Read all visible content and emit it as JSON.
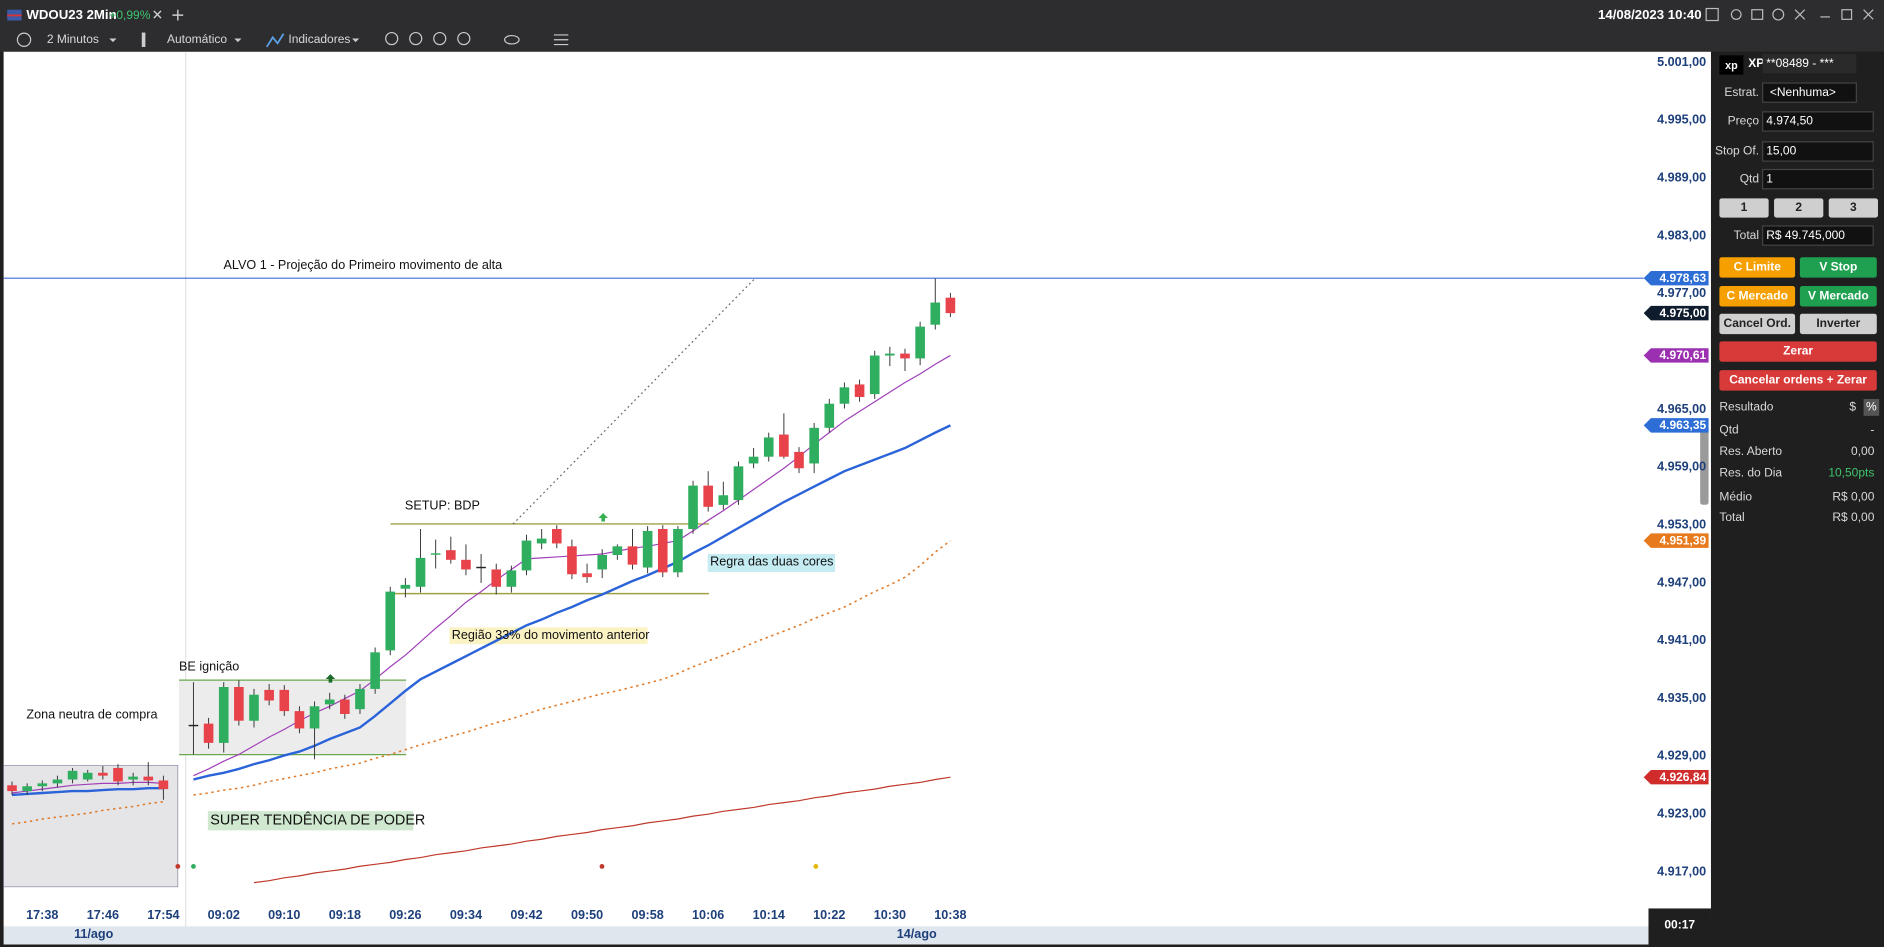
{
  "window": {
    "ticker": "WDOU23 2Min",
    "change": "+0,99%",
    "datetime": "14/08/2023 10:40"
  },
  "toolbar": {
    "interval": "2 Minutos",
    "scale": "Automático",
    "indicators": "Indicadores"
  },
  "chart_data": {
    "type": "candlestick",
    "ylim": [
      4915.75,
      5002.1
    ],
    "yticks": [
      {
        "value": 5001,
        "label": "5.001,00"
      },
      {
        "value": 4995,
        "label": "4.995,00"
      },
      {
        "value": 4989,
        "label": "4.989,00"
      },
      {
        "value": 4983,
        "label": "4.983,00"
      },
      {
        "value": 4977,
        "label": "4.977,00"
      },
      {
        "value": 4965,
        "label": "4.965,00"
      },
      {
        "value": 4959,
        "label": "4.959,00"
      },
      {
        "value": 4953,
        "label": "4.953,00"
      },
      {
        "value": 4947,
        "label": "4.947,00"
      },
      {
        "value": 4941,
        "label": "4.941,00"
      },
      {
        "value": 4935,
        "label": "4.935,00"
      },
      {
        "value": 4929,
        "label": "4.929,00"
      },
      {
        "value": 4923,
        "label": "4.923,00"
      },
      {
        "value": 4917,
        "label": "4.917,00"
      }
    ],
    "up_color": "#2fae5f",
    "down_color": "#e8434a",
    "sessions": [
      {
        "date": "11/ago",
        "categories": [
          null,
          null,
          "17:38",
          null,
          null,
          null,
          "17:46",
          null,
          null,
          null,
          "17:54"
        ],
        "open": [
          4926.0,
          4925.4,
          4925.9,
          4926.2,
          4926.6,
          4926.6,
          4927.3,
          4927.8,
          4926.6,
          4926.9,
          4926.5
        ],
        "high": [
          4926.4,
          4926.2,
          4926.5,
          4927.0,
          4927.8,
          4927.6,
          4928.0,
          4928.2,
          4927.3,
          4928.4,
          4927.0
        ],
        "low": [
          4925.0,
          4925.0,
          4925.4,
          4925.8,
          4926.2,
          4926.4,
          4926.6,
          4926.0,
          4926.0,
          4926.0,
          4924.5
        ],
        "close": [
          4925.4,
          4925.9,
          4926.2,
          4926.6,
          4927.5,
          4927.3,
          4927.0,
          4926.4,
          4926.9,
          4926.5,
          4925.6
        ],
        "indicators": [
          {
            "color": "#e07b2a",
            "width": 1.3,
            "dash": "2 3",
            "values": [
              4922.0,
              4922.2,
              4922.5,
              4922.7,
              4922.9,
              4923.1,
              4923.4,
              4923.6,
              4923.8,
              4924.1,
              4924.3
            ]
          },
          {
            "color": "#2b63d9",
            "width": 2,
            "dash": "none",
            "values": [
              4925.0,
              4925.1,
              4925.2,
              4925.3,
              4925.4,
              4925.4,
              4925.5,
              4925.6,
              4925.6,
              4925.7,
              4925.7
            ]
          },
          {
            "color": "#a040b8",
            "width": 1,
            "dash": "none",
            "values": [
              4925.2,
              4925.4,
              4925.6,
              4925.8,
              4926.0,
              4926.1,
              4926.2,
              4926.2,
              4926.3,
              4926.3,
              4926.2
            ]
          }
        ]
      },
      {
        "date": "14/ago",
        "categories": [
          null,
          null,
          "09:02",
          null,
          null,
          null,
          "09:10",
          null,
          null,
          null,
          "09:18",
          null,
          null,
          null,
          "09:26",
          null,
          null,
          null,
          "09:34",
          null,
          null,
          null,
          "09:42",
          null,
          null,
          null,
          "09:50",
          null,
          null,
          null,
          "09:58",
          null,
          null,
          null,
          "10:06",
          null,
          null,
          null,
          "10:14",
          null,
          null,
          null,
          "10:22",
          null,
          null,
          null,
          "10:30",
          null,
          null,
          null,
          "10:38"
        ],
        "open": [
          4932.2,
          4932.4,
          4930.4,
          4936.2,
          4932.7,
          4935.9,
          4935.9,
          4933.7,
          4931.9,
          4934.4,
          4934.9,
          4933.9,
          4936.0,
          4940.0,
          4946.4,
          4946.6,
          4949.9,
          4950.4,
          4949.4,
          4948.6,
          4948.4,
          4946.6,
          4948.3,
          4951.1,
          4952.6,
          4950.8,
          4948.0,
          4948.4,
          4949.9,
          4950.8,
          4948.6,
          4952.6,
          4948.1,
          4952.6,
          4957.1,
          4955.1,
          4955.6,
          4959.4,
          4960.1,
          4962.4,
          4960.6,
          4959.4,
          4963.1,
          4965.6,
          4967.6,
          4966.6,
          4970.6,
          4970.8,
          4970.3,
          4973.8,
          4976.6
        ],
        "high": [
          4936.7,
          4933.0,
          4936.7,
          4936.9,
          4936.0,
          4936.5,
          4936.4,
          4934.2,
          4934.7,
          4935.6,
          4935.4,
          4936.5,
          4940.3,
          4946.6,
          4947.5,
          4952.6,
          4951.5,
          4951.8,
          4951.0,
          4950.0,
          4949.0,
          4948.8,
          4952.0,
          4952.6,
          4953.0,
          4951.5,
          4949.0,
          4950.5,
          4951.0,
          4952.6,
          4952.9,
          4953.0,
          4952.9,
          4957.6,
          4958.6,
          4957.5,
          4959.6,
          4961.0,
          4962.6,
          4964.6,
          4961.1,
          4963.6,
          4966.1,
          4967.8,
          4968.1,
          4971.1,
          4971.5,
          4971.3,
          4974.1,
          4978.6,
          4977.1
        ],
        "low": [
          4929.2,
          4929.8,
          4929.4,
          4932.2,
          4932.0,
          4934.3,
          4933.2,
          4931.4,
          4928.7,
          4933.9,
          4932.9,
          4933.4,
          4935.5,
          4939.5,
          4945.5,
          4946.0,
          4948.5,
          4949.0,
          4947.8,
          4947.0,
          4945.8,
          4946.0,
          4947.8,
          4950.5,
          4950.6,
          4947.4,
          4947.0,
          4947.5,
          4949.4,
          4948.4,
          4948.0,
          4947.6,
          4947.6,
          4952.1,
          4954.4,
          4954.6,
          4955.1,
          4958.9,
          4959.6,
          4959.9,
          4958.4,
          4958.4,
          4962.6,
          4965.1,
          4965.8,
          4966.1,
          4969.5,
          4969.0,
          4969.6,
          4973.3,
          4974.6
        ],
        "close": [
          4932.2,
          4930.4,
          4936.2,
          4932.7,
          4935.4,
          4934.8,
          4933.7,
          4931.9,
          4934.2,
          4934.9,
          4933.4,
          4936.0,
          4939.8,
          4946.1,
          4946.8,
          4949.6,
          4950.0,
          4949.4,
          4948.4,
          4948.6,
          4946.6,
          4948.3,
          4951.4,
          4951.6,
          4951.1,
          4947.9,
          4947.6,
          4949.9,
          4950.8,
          4948.9,
          4952.4,
          4948.1,
          4952.6,
          4957.1,
          4954.9,
          4956.1,
          4959.1,
          4960.1,
          4962.1,
          4960.1,
          4958.9,
          4963.1,
          4965.6,
          4967.3,
          4966.3,
          4970.6,
          4970.8,
          4970.3,
          4973.6,
          4976.1,
          4975.0
        ],
        "indicators": [
          {
            "color": "#c0392b",
            "width": 1,
            "dash": "none",
            "values": [
              null,
              null,
              null,
              null,
              4915.9,
              4916.1,
              4916.4,
              4916.6,
              4916.9,
              4917.1,
              4917.3,
              4917.6,
              4917.8,
              4918.0,
              4918.3,
              4918.5,
              4918.8,
              4919.0,
              4919.2,
              4919.5,
              4919.7,
              4919.9,
              4920.2,
              4920.4,
              4920.7,
              4920.9,
              4921.1,
              4921.4,
              4921.6,
              4921.8,
              4922.1,
              4922.3,
              4922.5,
              4922.8,
              4923.0,
              4923.3,
              4923.5,
              4923.7,
              4924.0,
              4924.2,
              4924.4,
              4924.7,
              4924.9,
              4925.2,
              4925.4,
              4925.6,
              4925.9,
              4926.1,
              4926.3,
              4926.6,
              4926.84
            ]
          },
          {
            "color": "#e07b2a",
            "width": 1.3,
            "dash": "2 3",
            "values": [
              4925.0,
              4925.2,
              4925.5,
              4925.7,
              4926.0,
              4926.4,
              4926.7,
              4927.0,
              4927.3,
              4927.7,
              4928.0,
              4928.3,
              4928.8,
              4929.2,
              4929.7,
              4930.2,
              4930.6,
              4931.1,
              4931.5,
              4932.0,
              4932.5,
              4932.9,
              4933.4,
              4933.9,
              4934.3,
              4934.7,
              4935.1,
              4935.5,
              4935.8,
              4936.2,
              4936.6,
              4937.0,
              4937.6,
              4938.3,
              4938.9,
              4939.5,
              4940.1,
              4940.8,
              4941.4,
              4942.0,
              4942.6,
              4943.3,
              4943.9,
              4944.5,
              4945.3,
              4946.1,
              4946.8,
              4947.6,
              4948.8,
              4950.2,
              4951.39
            ]
          },
          {
            "color": "#2b63d9",
            "width": 2,
            "dash": "none",
            "values": [
              4926.6,
              4927.0,
              4927.3,
              4927.7,
              4928.2,
              4928.6,
              4929.1,
              4929.5,
              4930.1,
              4930.8,
              4931.4,
              4932.0,
              4933.2,
              4934.5,
              4935.8,
              4937.0,
              4937.8,
              4938.6,
              4939.4,
              4940.2,
              4941.0,
              4941.8,
              4942.6,
              4943.2,
              4943.9,
              4944.5,
              4945.2,
              4945.8,
              4946.5,
              4947.2,
              4947.8,
              4948.5,
              4949.2,
              4950.1,
              4950.9,
              4951.8,
              4952.7,
              4953.6,
              4954.5,
              4955.4,
              4956.2,
              4957.0,
              4957.8,
              4958.6,
              4959.2,
              4959.8,
              4960.4,
              4961.0,
              4961.8,
              4962.6,
              4963.35
            ]
          },
          {
            "color": "#a040b8",
            "width": 1,
            "dash": "none",
            "values": [
              4927.0,
              4927.7,
              4928.5,
              4929.2,
              4930.1,
              4931.0,
              4931.8,
              4932.7,
              4933.5,
              4934.2,
              4935.0,
              4935.8,
              4937.0,
              4938.3,
              4939.5,
              4940.9,
              4942.3,
              4943.6,
              4945.0,
              4946.1,
              4947.3,
              4948.4,
              4949.5,
              4949.6,
              4949.7,
              4949.8,
              4949.9,
              4950.0,
              4950.3,
              4950.6,
              4950.8,
              4951.1,
              4951.4,
              4952.4,
              4953.5,
              4954.5,
              4955.6,
              4956.7,
              4957.8,
              4958.9,
              4960.1,
              4961.4,
              4962.6,
              4963.8,
              4964.8,
              4965.8,
              4966.8,
              4967.8,
              4968.7,
              4969.7,
              4970.61
            ]
          }
        ]
      }
    ],
    "price_tags": [
      {
        "value": 4978.63,
        "label": "4.978,63",
        "color": "#2c6ed5",
        "line": true
      },
      {
        "value": 4975.0,
        "label": "4.975,00",
        "color": "#0f1c2e",
        "line": false
      },
      {
        "value": 4970.61,
        "label": "4.970,61",
        "color": "#9b30b0",
        "line": false
      },
      {
        "value": 4963.35,
        "label": "4.963,35",
        "color": "#2c6ed5",
        "line": false
      },
      {
        "value": 4951.39,
        "label": "4.951,39",
        "color": "#e87a1e",
        "line": false
      },
      {
        "value": 4926.84,
        "label": "4.926,84",
        "color": "#d02c2c",
        "line": false
      }
    ],
    "annotations": {
      "target": "ALVO 1 -  Projeção do Primeiro movimento de alta",
      "setup": "SETUP: BDP",
      "two_colors": "Regra das duas cores",
      "region": "Região  33% do movimento anterior",
      "ignition": "BE ignição",
      "neutral_zone": "Zona neutra de compra",
      "trend": "SUPER TENDÊNCIA DE PODER"
    }
  },
  "countdown": "00:17",
  "order_panel": {
    "account_logo": "xp",
    "broker": "XP",
    "account": "**08489 - ***",
    "strategy_label": "Estrat.",
    "strategy": "<Nenhuma>",
    "price_label": "Preço",
    "price": "4.974,50",
    "stop_label": "Stop Of.",
    "stop": "15,00",
    "qty_label": "Qtd",
    "qty": "1",
    "qty_buttons": [
      "1",
      "2",
      "3"
    ],
    "total_label": "Total",
    "total": "R$ 49.745,000",
    "buttons": {
      "buy_limit": "C Limite",
      "sell_stop": "V Stop",
      "buy_market": "C Mercado",
      "sell_market": "V Mercado",
      "cancel": "Cancel Ord.",
      "reverse": "Inverter",
      "flatten": "Zerar",
      "cancel_flatten": "Cancelar ordens + Zerar"
    },
    "result": {
      "title": "Resultado",
      "currency": "$",
      "percent": "%",
      "rows": [
        [
          "Qtd",
          "-"
        ],
        [
          "Res. Aberto",
          "0,00"
        ],
        [
          "Res. do Dia",
          "10,50pts"
        ],
        [
          "Médio",
          "R$ 0,00"
        ],
        [
          "Total",
          "R$ 0,00"
        ]
      ]
    }
  }
}
